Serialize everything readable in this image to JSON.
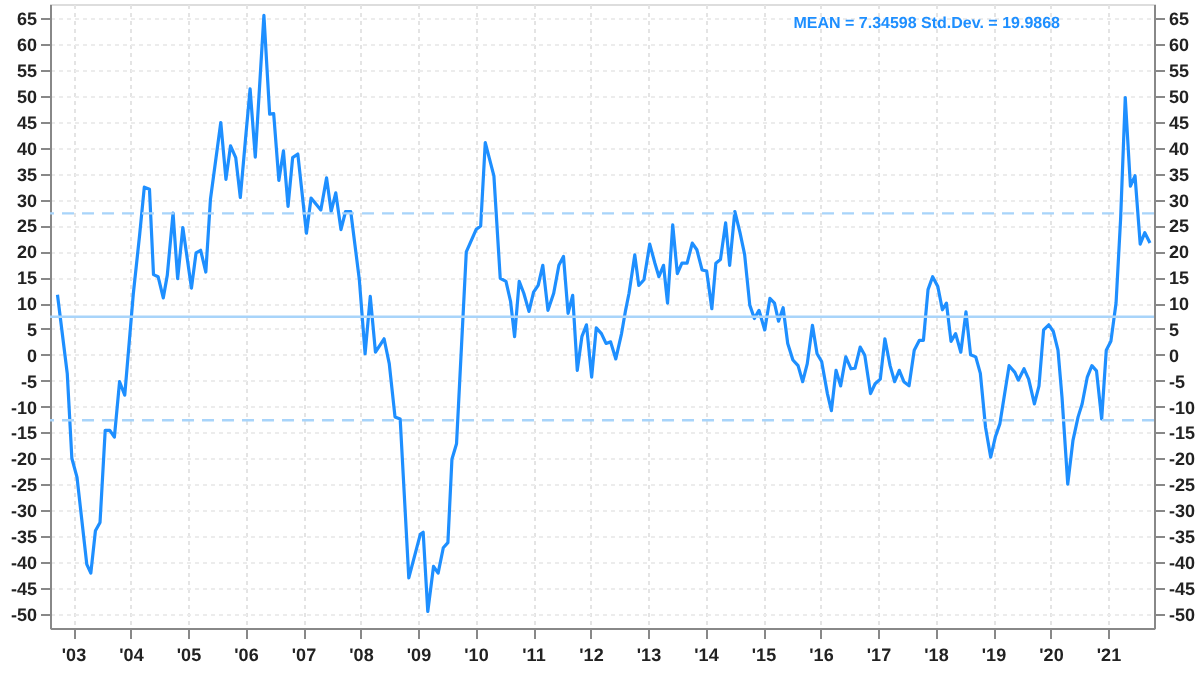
{
  "chart_data": {
    "type": "line",
    "x": [
      2002.73,
      2002.9,
      2002.98,
      2003.07,
      2003.24,
      2003.31,
      2003.39,
      2003.47,
      2003.56,
      2003.64,
      2003.72,
      2003.81,
      2003.9,
      2004.05,
      2004.16,
      2004.24,
      2004.33,
      2004.4,
      2004.48,
      2004.57,
      2004.64,
      2004.74,
      2004.82,
      2004.91,
      2005.06,
      2005.14,
      2005.22,
      2005.31,
      2005.39,
      2005.57,
      2005.66,
      2005.74,
      2005.83,
      2005.91,
      2006.0,
      2006.08,
      2006.17,
      2006.32,
      2006.42,
      2006.49,
      2006.58,
      2006.66,
      2006.74,
      2006.82,
      2006.91,
      2007.06,
      2007.14,
      2007.31,
      2007.41,
      2007.49,
      2007.57,
      2007.66,
      2007.74,
      2007.83,
      2007.98,
      2008.08,
      2008.17,
      2008.26,
      2008.41,
      2008.5,
      2008.6,
      2008.69,
      2008.84,
      2009.04,
      2009.09,
      2009.17,
      2009.27,
      2009.35,
      2009.44,
      2009.52,
      2009.59,
      2009.67,
      2009.84,
      2010.01,
      2010.09,
      2010.17,
      2010.32,
      2010.43,
      2010.53,
      2010.61,
      2010.68,
      2010.76,
      2010.84,
      2010.93,
      2011.01,
      2011.09,
      2011.17,
      2011.26,
      2011.36,
      2011.45,
      2011.53,
      2011.61,
      2011.69,
      2011.77,
      2011.85,
      2011.93,
      2012.02,
      2012.1,
      2012.19,
      2012.27,
      2012.35,
      2012.44,
      2012.54,
      2012.61,
      2012.67,
      2012.77,
      2012.84,
      2012.93,
      2013.03,
      2013.12,
      2013.19,
      2013.27,
      2013.34,
      2013.43,
      2013.51,
      2013.59,
      2013.68,
      2013.77,
      2013.85,
      2013.94,
      2014.02,
      2014.11,
      2014.18,
      2014.26,
      2014.35,
      2014.42,
      2014.51,
      2014.6,
      2014.68,
      2014.77,
      2014.85,
      2014.93,
      2015.03,
      2015.12,
      2015.2,
      2015.27,
      2015.35,
      2015.43,
      2015.52,
      2015.61,
      2015.69,
      2015.77,
      2015.86,
      2015.94,
      2016.02,
      2016.12,
      2016.19,
      2016.27,
      2016.35,
      2016.44,
      2016.53,
      2016.6,
      2016.69,
      2016.77,
      2016.87,
      2016.95,
      2017.04,
      2017.12,
      2017.21,
      2017.29,
      2017.37,
      2017.45,
      2017.54,
      2017.63,
      2017.72,
      2017.79,
      2017.87,
      2017.95,
      2018.04,
      2018.12,
      2018.19,
      2018.27,
      2018.35,
      2018.44,
      2018.53,
      2018.61,
      2018.7,
      2018.78,
      2018.87,
      2018.96,
      2019.04,
      2019.12,
      2019.28,
      2019.38,
      2019.44,
      2019.54,
      2019.62,
      2019.72,
      2019.8,
      2019.88,
      2019.97,
      2020.05,
      2020.13,
      2020.2,
      2020.3,
      2020.39,
      2020.48,
      2020.55,
      2020.64,
      2020.72,
      2020.8,
      2020.89,
      2020.97,
      2021.05,
      2021.14,
      2021.22,
      2021.3,
      2021.39,
      2021.47,
      2021.56,
      2021.64,
      2021.73
    ],
    "series": [
      {
        "color": "#1e8fff",
        "values": [
          11.6,
          -3.6,
          -20,
          -23.7,
          -40.5,
          -42.2,
          -34,
          -32.4,
          -14.6,
          -14.6,
          -15.9,
          -5.2,
          -7.8,
          11.9,
          23.3,
          32.4,
          32,
          15.5,
          15.1,
          11,
          15.4,
          27.4,
          14.7,
          24.6,
          12.9,
          19.7,
          20.2,
          16,
          30,
          44.9,
          33.9,
          40.4,
          38.1,
          30.4,
          41.7,
          51.4,
          38.2,
          65.6,
          46.5,
          46.6,
          33.7,
          39.4,
          28.7,
          38.1,
          38.8,
          23.5,
          30.3,
          28,
          34.2,
          27.7,
          31.3,
          24.2,
          27.7,
          27.7,
          14.5,
          0.2,
          11.3,
          0.5,
          3.1,
          -1.7,
          -12,
          -12.4,
          -43.1,
          -34.7,
          -34.3,
          -49.6,
          -40.9,
          -42.2,
          -37.3,
          -36.3,
          -20.2,
          -17.2,
          19.9,
          24.2,
          24.9,
          41,
          34.6,
          14.8,
          14.2,
          10.3,
          3.5,
          14.2,
          11.9,
          8.4,
          12.1,
          13.4,
          17.3,
          8.6,
          11.9,
          17.3,
          19,
          8,
          11.5,
          -3,
          3.5,
          5.8,
          -4.3,
          5.2,
          4.1,
          2.2,
          2.5,
          -0.8,
          4.1,
          8.6,
          11.9,
          19.3,
          13.4,
          14.5,
          21.4,
          17.7,
          15.1,
          17.3,
          10,
          25.1,
          15.7,
          17.7,
          17.7,
          21.6,
          20.3,
          16.4,
          16.2,
          8.9,
          17.7,
          18.4,
          25.5,
          17.3,
          27.7,
          23.6,
          19.4,
          9.6,
          7,
          8.6,
          4.8,
          10.9,
          10,
          6.5,
          9.1,
          2.2,
          -1,
          -2.1,
          -5.2,
          -1.7,
          5.7,
          0.2,
          -1.3,
          -7.5,
          -10.8,
          -3,
          -6,
          -0.4,
          -2.7,
          -2.6,
          1.5,
          -0.1,
          -7.5,
          -5.6,
          -4.7,
          3.1,
          -2.1,
          -5.2,
          -3,
          -5.2,
          -6,
          0.9,
          2.8,
          2.8,
          12.6,
          15.1,
          13.2,
          8.7,
          10,
          2.6,
          4.1,
          0.5,
          8.3,
          0,
          -0.4,
          -3.6,
          -14,
          -19.8,
          -15.9,
          -13.3,
          -2.1,
          -3.4,
          -4.9,
          -2.7,
          -4.7,
          -9.5,
          -6,
          4.8,
          5.8,
          4.5,
          0.9,
          -8.2,
          -25,
          -16.6,
          -12,
          -9.5,
          -4.3,
          -2.1,
          -3.1,
          -12.4,
          0.9,
          2.6,
          10,
          26.4,
          49.7,
          32.6,
          34.6,
          21.4,
          23.6,
          21.6
        ]
      }
    ],
    "xlim": [
      2002.6,
      2021.8
    ],
    "xticks": [
      {
        "value": 2003,
        "label": "'03"
      },
      {
        "value": 2004,
        "label": "'04"
      },
      {
        "value": 2005,
        "label": "'05"
      },
      {
        "value": 2006,
        "label": "'06"
      },
      {
        "value": 2007,
        "label": "'07"
      },
      {
        "value": 2008,
        "label": "'08"
      },
      {
        "value": 2009,
        "label": "'09"
      },
      {
        "value": 2010,
        "label": "'10"
      },
      {
        "value": 2011,
        "label": "'11"
      },
      {
        "value": 2012,
        "label": "'12"
      },
      {
        "value": 2013,
        "label": "'13"
      },
      {
        "value": 2014,
        "label": "'14"
      },
      {
        "value": 2015,
        "label": "'15"
      },
      {
        "value": 2016,
        "label": "'16"
      },
      {
        "value": 2017,
        "label": "'17"
      },
      {
        "value": 2018,
        "label": "'18"
      },
      {
        "value": 2019,
        "label": "'19"
      },
      {
        "value": 2020,
        "label": "'20"
      },
      {
        "value": 2021,
        "label": "'21"
      }
    ],
    "ylim": [
      -52.8,
      67.8
    ],
    "yticks": [
      -50,
      -45,
      -40,
      -35,
      -30,
      -25,
      -20,
      -15,
      -10,
      -5,
      0,
      5,
      10,
      15,
      20,
      25,
      30,
      35,
      40,
      45,
      50,
      55,
      60,
      65
    ],
    "y2lim": [
      -52.8,
      67.8
    ],
    "y2ticks": [
      -50,
      -45,
      -40,
      -35,
      -30,
      -25,
      -20,
      -15,
      -10,
      -5,
      0,
      5,
      10,
      15,
      20,
      25,
      30,
      35,
      40,
      45,
      50,
      55,
      60,
      65
    ],
    "ref_lines": [
      {
        "axis": "y",
        "value": 7.34598,
        "color": "#a8d4fa",
        "line_style": "solid"
      },
      {
        "axis": "y",
        "value": 27.3328,
        "color": "#a8d4fa",
        "line_style": "dashed"
      },
      {
        "axis": "y",
        "value": -12.6408,
        "color": "#a8d4fa",
        "line_style": "dashed"
      }
    ],
    "annotations": [
      "MEAN = 7.34598 Std.Dev. = 19.9868"
    ],
    "grid": true,
    "line_style": "solid",
    "marker": "none"
  }
}
